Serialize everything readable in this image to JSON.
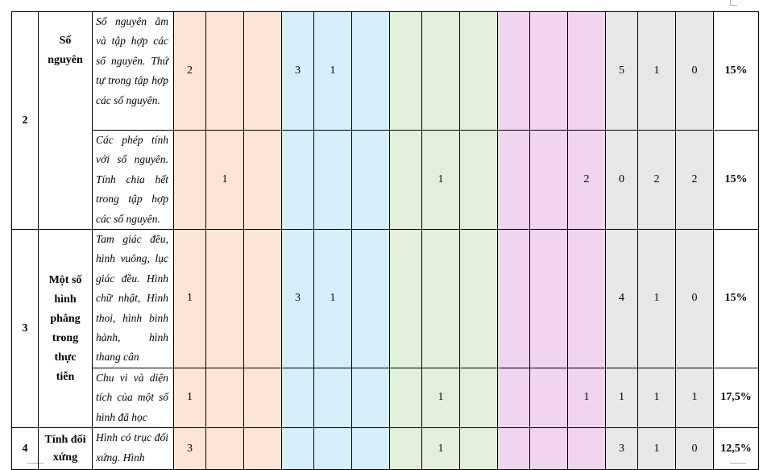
{
  "rows": [
    {
      "stt": "2",
      "topic": "Số nguyên",
      "items": [
        {
          "content": "Số nguyên âm và tập hợp các số nguyên. Thứ tự trong tập hợp các số nguyên.",
          "cells": [
            "2",
            "",
            "",
            "3",
            "1",
            "",
            "",
            "",
            "",
            "",
            "",
            "",
            "5",
            "1",
            "0"
          ],
          "percent": "15%"
        },
        {
          "content": "Các phép tính với số nguyên. Tính chia hết trong tập hợp các số nguyên.",
          "cells": [
            "",
            "1",
            "",
            "",
            "",
            "",
            "",
            "1",
            "",
            "",
            "",
            "2",
            "0",
            "2",
            "2"
          ],
          "percent": "15%"
        }
      ]
    },
    {
      "stt": "3",
      "topic": "Một số hình phẳng trong thực tiễn",
      "items": [
        {
          "content": "Tam giác đều, hình vuông, lục giác đều. Hình chữ nhật, Hình thoi, hình bình hành, hình thang cân",
          "cells": [
            "1",
            "",
            "",
            "3",
            "1",
            "",
            "",
            "",
            "",
            "",
            "",
            "",
            "4",
            "1",
            "0"
          ],
          "percent": "15%"
        },
        {
          "content": "Chu vi và diện tích của một số hình đã học",
          "cells": [
            "1",
            "",
            "",
            "",
            "",
            "",
            "",
            "1",
            "",
            "",
            "",
            "1",
            "1",
            "1",
            "1"
          ],
          "percent": "17,5%"
        }
      ]
    },
    {
      "stt": "4",
      "topic": "Tính đối xứng",
      "items": [
        {
          "content": "Hình có trục đối xứng. Hình",
          "cells": [
            "3",
            "",
            "",
            "",
            "",
            "",
            "",
            "1",
            "",
            "",
            "",
            "",
            "3",
            "1",
            "0"
          ],
          "percent": "12,5%"
        }
      ]
    }
  ],
  "colors": {
    "orange": "#fbe4d5",
    "blue": "#d6eef9",
    "green": "#e2f0d9",
    "purple": "#f1d5ef",
    "gray": "#e7e7e7"
  }
}
